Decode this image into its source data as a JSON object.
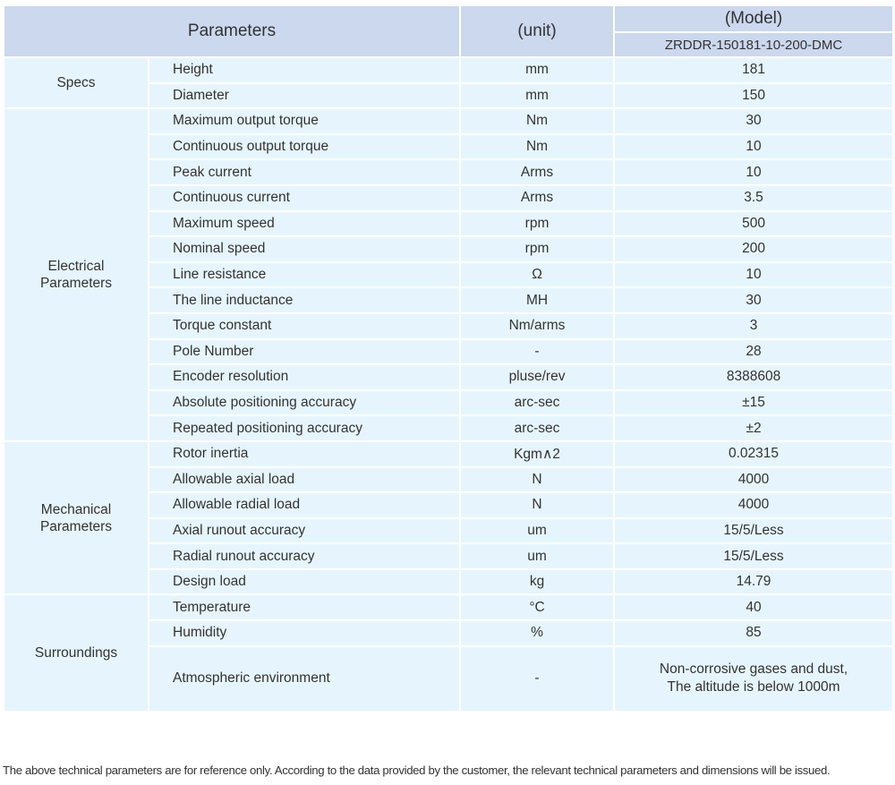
{
  "header": {
    "parameters": "Parameters",
    "unit": "(unit)",
    "model_label": "(Model)",
    "model": "ZRDDR-150181-10-200-DMC"
  },
  "groups": [
    {
      "name": "Specs",
      "rows": [
        {
          "param": "Height",
          "unit": "mm",
          "value": "181"
        },
        {
          "param": "Diameter",
          "unit": "mm",
          "value": "150"
        }
      ]
    },
    {
      "name": "Electrical Parameters",
      "rows": [
        {
          "param": "Maximum output torque",
          "unit": "Nm",
          "value": "30"
        },
        {
          "param": "Continuous output torque",
          "unit": "Nm",
          "value": "10"
        },
        {
          "param": "Peak current",
          "unit": "Arms",
          "value": "10"
        },
        {
          "param": "Continuous current",
          "unit": "Arms",
          "value": "3.5"
        },
        {
          "param": "Maximum speed",
          "unit": "rpm",
          "value": "500"
        },
        {
          "param": "Nominal speed",
          "unit": "rpm",
          "value": "200"
        },
        {
          "param": "Line resistance",
          "unit": "Ω",
          "value": "10"
        },
        {
          "param": "The line inductance",
          "unit": "MH",
          "value": "30"
        },
        {
          "param": "Torque constant",
          "unit": "Nm/arms",
          "value": "3"
        },
        {
          "param": "Pole Number",
          "unit": "-",
          "value": "28"
        },
        {
          "param": "Encoder resolution",
          "unit": "pluse/rev",
          "value": "8388608"
        },
        {
          "param": "Absolute positioning accuracy",
          "unit": "arc-sec",
          "value": "±15"
        },
        {
          "param": "Repeated positioning accuracy",
          "unit": "arc-sec",
          "value": "±2"
        }
      ]
    },
    {
      "name": "Mechanical Parameters",
      "rows": [
        {
          "param": "Rotor inertia",
          "unit": "Kgm∧2",
          "value": "0.02315"
        },
        {
          "param": "Allowable axial load",
          "unit": "N",
          "value": "4000"
        },
        {
          "param": "Allowable radial load",
          "unit": "N",
          "value": "4000"
        },
        {
          "param": "Axial runout accuracy",
          "unit": "um",
          "value": "15/5/Less"
        },
        {
          "param": "Radial runout accuracy",
          "unit": "um",
          "value": "15/5/Less"
        },
        {
          "param": "Design load",
          "unit": "kg",
          "value": "14.79"
        }
      ]
    },
    {
      "name": "Surroundings",
      "rows": [
        {
          "param": "Temperature",
          "unit": "°C",
          "value": "40"
        },
        {
          "param": "Humidity",
          "unit": "%",
          "value": "85"
        },
        {
          "param": "Atmospheric environment",
          "unit": "-",
          "value": "Non-corrosive gases and dust,\nThe altitude is below 1000m"
        }
      ]
    }
  ],
  "note": "The above technical parameters are for reference only. According to the data provided by the customer, the relevant technical parameters and dimensions will be issued."
}
